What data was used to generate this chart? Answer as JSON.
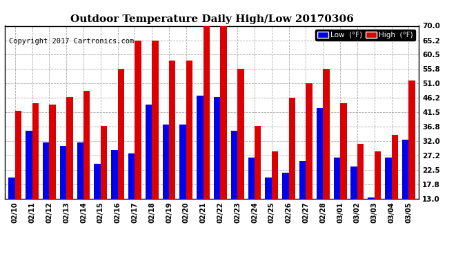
{
  "title": "Outdoor Temperature Daily High/Low 20170306",
  "copyright": "Copyright 2017 Cartronics.com",
  "legend_low": "Low  (°F)",
  "legend_high": "High  (°F)",
  "dates": [
    "02/10",
    "02/11",
    "02/12",
    "02/13",
    "02/14",
    "02/15",
    "02/16",
    "02/17",
    "02/18",
    "02/19",
    "02/20",
    "02/21",
    "02/22",
    "02/23",
    "02/24",
    "02/25",
    "02/26",
    "02/27",
    "02/28",
    "03/01",
    "03/02",
    "03/03",
    "03/04",
    "03/05"
  ],
  "high": [
    42.0,
    44.5,
    44.0,
    46.5,
    48.5,
    37.0,
    55.8,
    65.2,
    65.2,
    58.5,
    58.5,
    70.0,
    71.5,
    55.8,
    37.0,
    28.5,
    46.2,
    51.0,
    55.8,
    44.5,
    31.0,
    28.5,
    34.0,
    52.0
  ],
  "low": [
    20.0,
    35.5,
    31.5,
    30.5,
    31.5,
    24.5,
    29.0,
    28.0,
    44.0,
    37.5,
    37.5,
    47.0,
    46.5,
    35.5,
    26.5,
    20.0,
    21.5,
    25.5,
    43.0,
    26.5,
    23.5,
    13.5,
    26.5,
    32.5
  ],
  "ylim_min": 13.0,
  "ylim_max": 70.0,
  "yticks": [
    13.0,
    17.8,
    22.5,
    27.2,
    32.0,
    36.8,
    41.5,
    46.2,
    51.0,
    55.8,
    60.5,
    65.2,
    70.0
  ],
  "bar_color_low": "#0000ee",
  "bar_color_high": "#dd0000",
  "bg_color": "#ffffff",
  "grid_color": "#aaaaaa",
  "title_fontsize": 11,
  "copyright_fontsize": 7.5,
  "bar_width": 0.38
}
